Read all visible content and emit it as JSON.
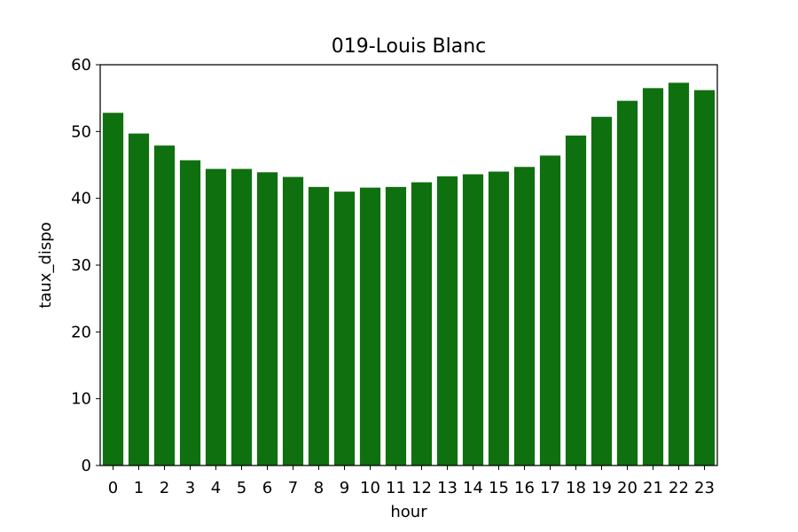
{
  "chart_data": {
    "type": "bar",
    "title": "019-Louis Blanc",
    "xlabel": "hour",
    "ylabel": "taux_dispo",
    "categories": [
      "0",
      "1",
      "2",
      "3",
      "4",
      "5",
      "6",
      "7",
      "8",
      "9",
      "10",
      "11",
      "12",
      "13",
      "14",
      "15",
      "16",
      "17",
      "18",
      "19",
      "20",
      "21",
      "22",
      "23"
    ],
    "values": [
      52.8,
      49.7,
      47.9,
      45.7,
      44.4,
      44.4,
      43.9,
      43.2,
      41.7,
      41.0,
      41.6,
      41.7,
      42.4,
      43.3,
      43.6,
      44.0,
      44.7,
      46.4,
      49.4,
      52.2,
      54.6,
      56.5,
      57.3,
      56.2
    ],
    "ylim": [
      0,
      60
    ],
    "yticks": [
      "0",
      "10",
      "20",
      "30",
      "40",
      "50",
      "60"
    ],
    "bar_color": "#0f700f",
    "grid": false,
    "legend": "none"
  }
}
